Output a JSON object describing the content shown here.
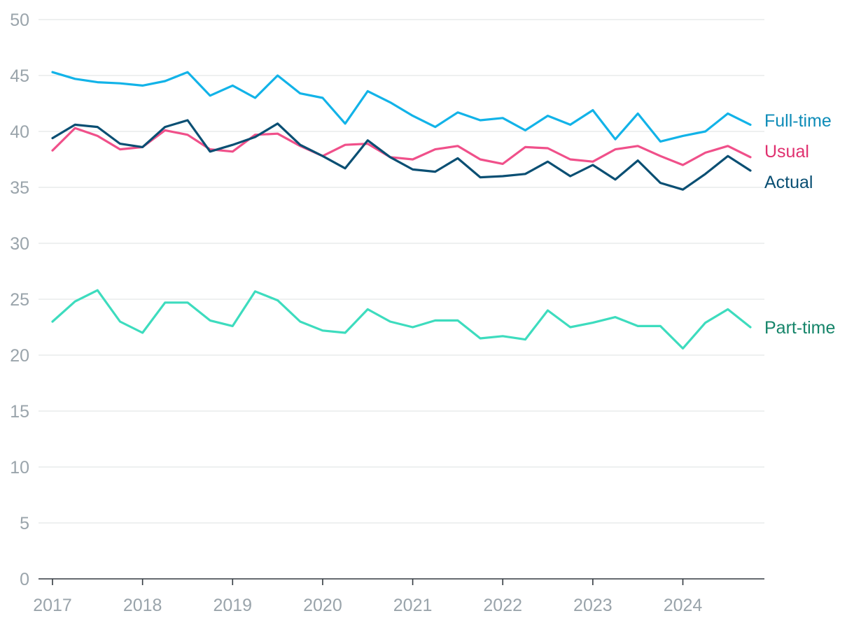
{
  "chart_data": {
    "type": "line",
    "title": "",
    "xlabel": "",
    "ylabel": "",
    "ylim": [
      0,
      50
    ],
    "yticks": [
      0,
      5,
      10,
      15,
      20,
      25,
      30,
      35,
      40,
      45,
      50
    ],
    "xlim": [
      2017,
      2024.75
    ],
    "xticks": [
      2017,
      2018,
      2019,
      2020,
      2021,
      2022,
      2023,
      2024
    ],
    "grid": true,
    "legend": "inline-right",
    "x": [
      2017,
      2017.25,
      2017.5,
      2017.75,
      2018,
      2018.25,
      2018.5,
      2018.75,
      2019,
      2019.25,
      2019.5,
      2019.75,
      2020,
      2020.25,
      2020.5,
      2020.75,
      2021,
      2021.25,
      2021.5,
      2021.75,
      2022,
      2022.25,
      2022.5,
      2022.75,
      2023,
      2023.25,
      2023.5,
      2023.75,
      2024,
      2024.25,
      2024.5,
      2024.75
    ],
    "series": [
      {
        "name": "Full-time",
        "color": "#12b3e8",
        "label_color": "#0e8cb8",
        "values": [
          45.3,
          44.7,
          44.4,
          44.3,
          44.1,
          44.5,
          45.3,
          43.2,
          44.1,
          43.0,
          45.0,
          43.4,
          43.0,
          40.7,
          43.6,
          42.6,
          41.4,
          40.4,
          41.7,
          41.0,
          41.2,
          40.1,
          41.4,
          40.6,
          41.9,
          39.3,
          41.6,
          39.1,
          39.6,
          40.0,
          41.6,
          40.6
        ]
      },
      {
        "name": "Usual",
        "color": "#f0508a",
        "label_color": "#e0306f",
        "values": [
          38.3,
          40.3,
          39.6,
          38.4,
          38.6,
          40.1,
          39.7,
          38.4,
          38.2,
          39.7,
          39.8,
          38.7,
          37.8,
          38.8,
          38.9,
          37.7,
          37.5,
          38.4,
          38.7,
          37.5,
          37.1,
          38.6,
          38.5,
          37.5,
          37.3,
          38.4,
          38.7,
          37.8,
          37.0,
          38.1,
          38.7,
          37.7
        ]
      },
      {
        "name": "Actual",
        "color": "#0a4f73",
        "label_color": "#0a4f73",
        "values": [
          39.4,
          40.6,
          40.4,
          38.9,
          38.6,
          40.4,
          41.0,
          38.2,
          38.8,
          39.5,
          40.7,
          38.8,
          37.8,
          36.7,
          39.2,
          37.7,
          36.6,
          36.4,
          37.6,
          35.9,
          36.0,
          36.2,
          37.3,
          36.0,
          37.0,
          35.7,
          37.4,
          35.4,
          34.8,
          36.2,
          37.8,
          36.5
        ]
      },
      {
        "name": "Part-time",
        "color": "#3ddcbe",
        "label_color": "#16856a",
        "values": [
          23.0,
          24.8,
          25.8,
          23.0,
          22.0,
          24.7,
          24.7,
          23.1,
          22.6,
          25.7,
          24.9,
          23.0,
          22.2,
          22.0,
          24.1,
          23.0,
          22.5,
          23.1,
          23.1,
          21.5,
          21.7,
          21.4,
          24.0,
          22.5,
          22.9,
          23.4,
          22.6,
          22.6,
          20.6,
          22.9,
          24.1,
          22.5
        ]
      }
    ]
  }
}
